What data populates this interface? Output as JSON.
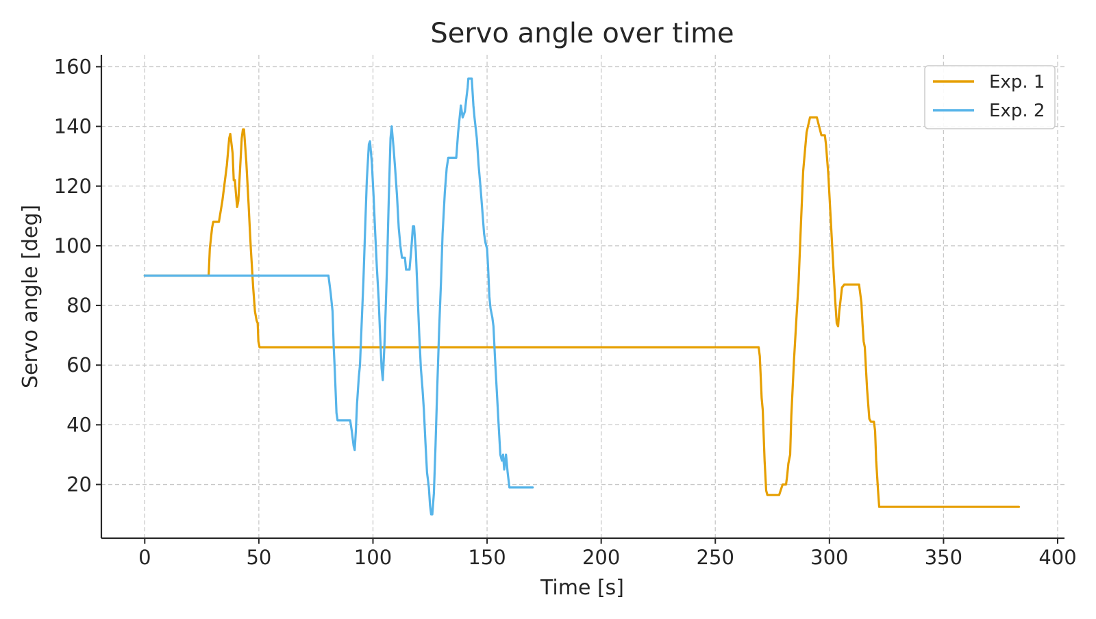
{
  "chart_data": {
    "type": "line",
    "title": "Servo angle over time",
    "xlabel": "Time [s]",
    "ylabel": "Servo angle [deg]",
    "xlim": [
      -19,
      403
    ],
    "ylim": [
      2,
      164
    ],
    "xticks": [
      0,
      50,
      100,
      150,
      200,
      250,
      300,
      350,
      400
    ],
    "yticks": [
      20,
      40,
      60,
      80,
      100,
      120,
      140,
      160
    ],
    "grid": true,
    "legend_position": "top-right",
    "series": [
      {
        "name": "Exp. 1",
        "color": "#E69F00",
        "points": [
          [
            0,
            90
          ],
          [
            28,
            90
          ],
          [
            28.5,
            99
          ],
          [
            29.5,
            106
          ],
          [
            30,
            108
          ],
          [
            32.5,
            108
          ],
          [
            34,
            115
          ],
          [
            36,
            127
          ],
          [
            37,
            136
          ],
          [
            37.5,
            137.5
          ],
          [
            38.5,
            131
          ],
          [
            39,
            122
          ],
          [
            39.5,
            122
          ],
          [
            40,
            117
          ],
          [
            40.5,
            113
          ],
          [
            41,
            115
          ],
          [
            41.5,
            122
          ],
          [
            42.5,
            136
          ],
          [
            43,
            139
          ],
          [
            43.5,
            139
          ],
          [
            44.5,
            128
          ],
          [
            45.5,
            114
          ],
          [
            46,
            106
          ],
          [
            46.5,
            99
          ],
          [
            47.5,
            86
          ],
          [
            48.3,
            78
          ],
          [
            49,
            75
          ],
          [
            49.5,
            74
          ],
          [
            49.8,
            68
          ],
          [
            50.3,
            66
          ],
          [
            269,
            66
          ],
          [
            269.5,
            63
          ],
          [
            270.3,
            49
          ],
          [
            270.8,
            45
          ],
          [
            271.6,
            28
          ],
          [
            272.3,
            18
          ],
          [
            272.8,
            16.5
          ],
          [
            278,
            16.5
          ],
          [
            279.5,
            20
          ],
          [
            281,
            20
          ],
          [
            281.5,
            23
          ],
          [
            282,
            27
          ],
          [
            282.8,
            30
          ],
          [
            283.3,
            43
          ],
          [
            284.5,
            62
          ],
          [
            285.5,
            75
          ],
          [
            286.5,
            88
          ],
          [
            287.5,
            107
          ],
          [
            288.5,
            125
          ],
          [
            290,
            138
          ],
          [
            291.5,
            143
          ],
          [
            294.5,
            143
          ],
          [
            295.5,
            140
          ],
          [
            296.5,
            137
          ],
          [
            298,
            137
          ],
          [
            298.5,
            134
          ],
          [
            299.5,
            124
          ],
          [
            300.5,
            110
          ],
          [
            301.5,
            96
          ],
          [
            302.5,
            82
          ],
          [
            303.2,
            74
          ],
          [
            303.8,
            73
          ],
          [
            304.3,
            78
          ],
          [
            305.5,
            86
          ],
          [
            306.5,
            87
          ],
          [
            313,
            87
          ],
          [
            313.5,
            84
          ],
          [
            314,
            81
          ],
          [
            314.5,
            74
          ],
          [
            315,
            68
          ],
          [
            315.5,
            66
          ],
          [
            316.5,
            52
          ],
          [
            317.5,
            42
          ],
          [
            318.2,
            41
          ],
          [
            319.5,
            41
          ],
          [
            320,
            38
          ],
          [
            320.5,
            28
          ],
          [
            321.3,
            18
          ],
          [
            321.8,
            12.5
          ],
          [
            383,
            12.5
          ]
        ]
      },
      {
        "name": "Exp. 2",
        "color": "#56B4E9",
        "points": [
          [
            0,
            90
          ],
          [
            80.5,
            90
          ],
          [
            81.5,
            84
          ],
          [
            82.3,
            78
          ],
          [
            82.8,
            66
          ],
          [
            83.3,
            58
          ],
          [
            84,
            44
          ],
          [
            84.5,
            41.5
          ],
          [
            90,
            41.5
          ],
          [
            90.7,
            38
          ],
          [
            91.5,
            33
          ],
          [
            92,
            31.5
          ],
          [
            92.5,
            38
          ],
          [
            93,
            47
          ],
          [
            93.8,
            56
          ],
          [
            94.3,
            60
          ],
          [
            95,
            73
          ],
          [
            95.8,
            88
          ],
          [
            96.5,
            104
          ],
          [
            97.3,
            122
          ],
          [
            98.2,
            134
          ],
          [
            98.7,
            135
          ],
          [
            99.5,
            128
          ],
          [
            100.3,
            116
          ],
          [
            101,
            104
          ],
          [
            101.7,
            93
          ],
          [
            102.5,
            82
          ],
          [
            103.2,
            69
          ],
          [
            103.8,
            59
          ],
          [
            104.3,
            55
          ],
          [
            105,
            66
          ],
          [
            105.6,
            79
          ],
          [
            106.3,
            97
          ],
          [
            107,
            118
          ],
          [
            107.7,
            136
          ],
          [
            108.2,
            140
          ],
          [
            109,
            133
          ],
          [
            109.7,
            126
          ],
          [
            110.5,
            117
          ],
          [
            111.3,
            106
          ],
          [
            112,
            100
          ],
          [
            112.7,
            96
          ],
          [
            114,
            96
          ],
          [
            114.5,
            92
          ],
          [
            116,
            92
          ],
          [
            116.8,
            99
          ],
          [
            117.5,
            106.5
          ],
          [
            118,
            106.5
          ],
          [
            118.8,
            98
          ],
          [
            119.5,
            85
          ],
          [
            120.3,
            70
          ],
          [
            121,
            59
          ],
          [
            121.7,
            52
          ],
          [
            122.3,
            45
          ],
          [
            123,
            34
          ],
          [
            123.7,
            24
          ],
          [
            124.5,
            19
          ],
          [
            125,
            13
          ],
          [
            125.5,
            10
          ],
          [
            126,
            10
          ],
          [
            126.7,
            17
          ],
          [
            127.4,
            33
          ],
          [
            128.2,
            53
          ],
          [
            129,
            72
          ],
          [
            129.8,
            88
          ],
          [
            130.5,
            104
          ],
          [
            131.5,
            118
          ],
          [
            132.3,
            126
          ],
          [
            133,
            129.5
          ],
          [
            136.5,
            129.5
          ],
          [
            137.3,
            138
          ],
          [
            138.5,
            147
          ],
          [
            139.3,
            143
          ],
          [
            140.3,
            145
          ],
          [
            141,
            150
          ],
          [
            141.5,
            153
          ],
          [
            141.8,
            156
          ],
          [
            143.3,
            156
          ],
          [
            144,
            147
          ],
          [
            144.5,
            143
          ],
          [
            145.5,
            136
          ],
          [
            146.3,
            127
          ],
          [
            147.2,
            119
          ],
          [
            148,
            111
          ],
          [
            148.7,
            104
          ],
          [
            149.3,
            101
          ],
          [
            150,
            99
          ],
          [
            150.5,
            92
          ],
          [
            151,
            83
          ],
          [
            151.5,
            79
          ],
          [
            152.3,
            76
          ],
          [
            152.8,
            73
          ],
          [
            153.5,
            62
          ],
          [
            154.2,
            52
          ],
          [
            155,
            41
          ],
          [
            155.8,
            30
          ],
          [
            156.5,
            28
          ],
          [
            157,
            30
          ],
          [
            157.5,
            25
          ],
          [
            158.3,
            30
          ],
          [
            159,
            24
          ],
          [
            159.8,
            19
          ],
          [
            170,
            19
          ]
        ]
      }
    ]
  }
}
